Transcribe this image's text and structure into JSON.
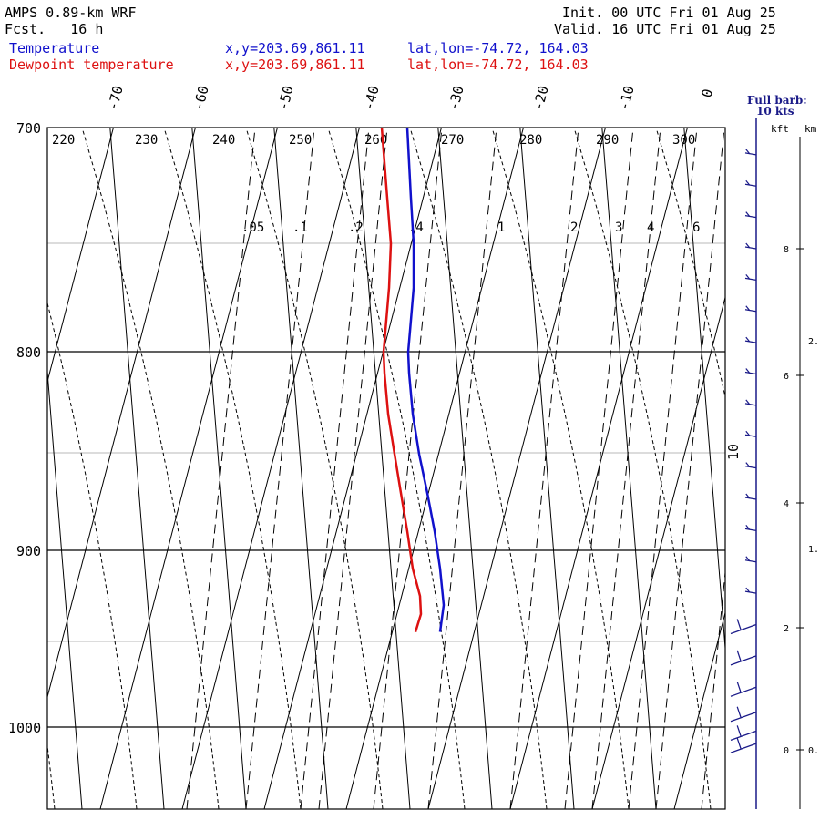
{
  "header": {
    "model": "AMPS 0.89-km WRF",
    "fcst": "Fcst.   16 h",
    "init": "Init. 00 UTC Fri 01 Aug 25",
    "valid": "Valid. 16 UTC Fri 01 Aug 25",
    "legend": [
      {
        "label": "Temperature",
        "xy": "x,y=203.69,861.11",
        "latlon": "lat,lon=-74.72, 164.03",
        "color": "#1111cc"
      },
      {
        "label": "Dewpoint temperature",
        "xy": "x,y=203.69,861.11",
        "latlon": "lat,lon=-74.72, 164.03",
        "color": "#dd1111"
      }
    ]
  },
  "wind_panel": {
    "title_line1": "Full barb:",
    "title_line2": "10 kts",
    "units_kft": "kft",
    "units_km": "km",
    "kft_ticks": [
      "8",
      "6",
      "4",
      "2",
      "0"
    ],
    "km_ticks": [
      "2.",
      "1.",
      "0."
    ]
  },
  "chart_data": {
    "type": "line",
    "pressure_ticks": [
      700,
      800,
      900,
      1000
    ],
    "pressure_tick_labels": [
      "700",
      "800",
      "900",
      "1000"
    ],
    "isotherms": [
      -70,
      -60,
      -50,
      -40,
      -30,
      -20,
      -10,
      0,
      10
    ],
    "isotherm_labels": [
      "-70",
      "-60",
      "-50",
      "-40",
      "-30",
      "-20",
      "-10",
      "0",
      "10"
    ],
    "theta_labels": [
      "220",
      "230",
      "240",
      "250",
      "260",
      "270",
      "280",
      "290",
      "300"
    ],
    "mixing_ratio_labels": [
      ".05",
      ".1",
      ".2",
      ".4",
      "1",
      "2",
      "3",
      "4",
      "6"
    ],
    "series": [
      {
        "name": "Temperature",
        "color": "#1111cc",
        "p": [
          945,
          930,
          910,
          890,
          870,
          850,
          830,
          810,
          800,
          790,
          770,
          750,
          730,
          700
        ],
        "tpix": [
          483,
          487,
          483,
          477,
          469,
          460,
          453,
          449,
          448,
          450,
          454,
          454,
          451,
          447
        ]
      },
      {
        "name": "Dewpoint temperature",
        "color": "#dd1111",
        "p": [
          945,
          935,
          925,
          910,
          890,
          870,
          850,
          830,
          810,
          800,
          790,
          770,
          750,
          730,
          700
        ],
        "tpix": [
          456,
          462,
          461,
          453,
          447,
          440,
          433,
          426,
          422,
          421,
          423,
          427,
          429,
          425,
          419
        ]
      }
    ],
    "wind_barbs": {
      "heights_kft": [
        0.1,
        0.3,
        0.6,
        1.0,
        1.5,
        2.0,
        2.5,
        3.0,
        3.5,
        4.0,
        4.5,
        5.0,
        5.5,
        6.0,
        6.5,
        7.0,
        7.5,
        8.0,
        8.5,
        9.0,
        9.5
      ]
    }
  }
}
